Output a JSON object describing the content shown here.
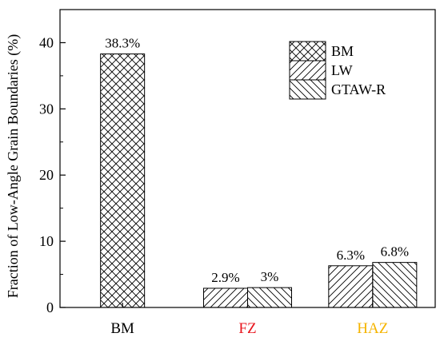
{
  "chart_data": {
    "type": "bar",
    "categories": [
      "BM",
      "FZ",
      "HAZ"
    ],
    "category_colors": [
      "#000000",
      "#e8141c",
      "#f5b400"
    ],
    "series": [
      {
        "name": "BM",
        "pattern": "crosshatch",
        "values": [
          38.3,
          null,
          null
        ],
        "labels": [
          "38.3%",
          null,
          null
        ]
      },
      {
        "name": "LW",
        "pattern": "forward-diagonal",
        "values": [
          null,
          2.9,
          6.3
        ],
        "labels": [
          null,
          "2.9%",
          "6.3%"
        ]
      },
      {
        "name": "GTAW-R",
        "pattern": "backward-diagonal",
        "values": [
          null,
          3,
          6.8
        ],
        "labels": [
          null,
          "3%",
          "6.8%"
        ]
      }
    ],
    "ylabel": "Fraction of Low-Angle Grain Boundaries (%)",
    "xlabel": "",
    "ylim": [
      0,
      45
    ],
    "yticks": [
      0,
      10,
      20,
      30,
      40
    ],
    "ytick_labels": [
      "0",
      "10",
      "20",
      "30",
      "40"
    ],
    "grid": false,
    "legend_position": "top-right"
  }
}
